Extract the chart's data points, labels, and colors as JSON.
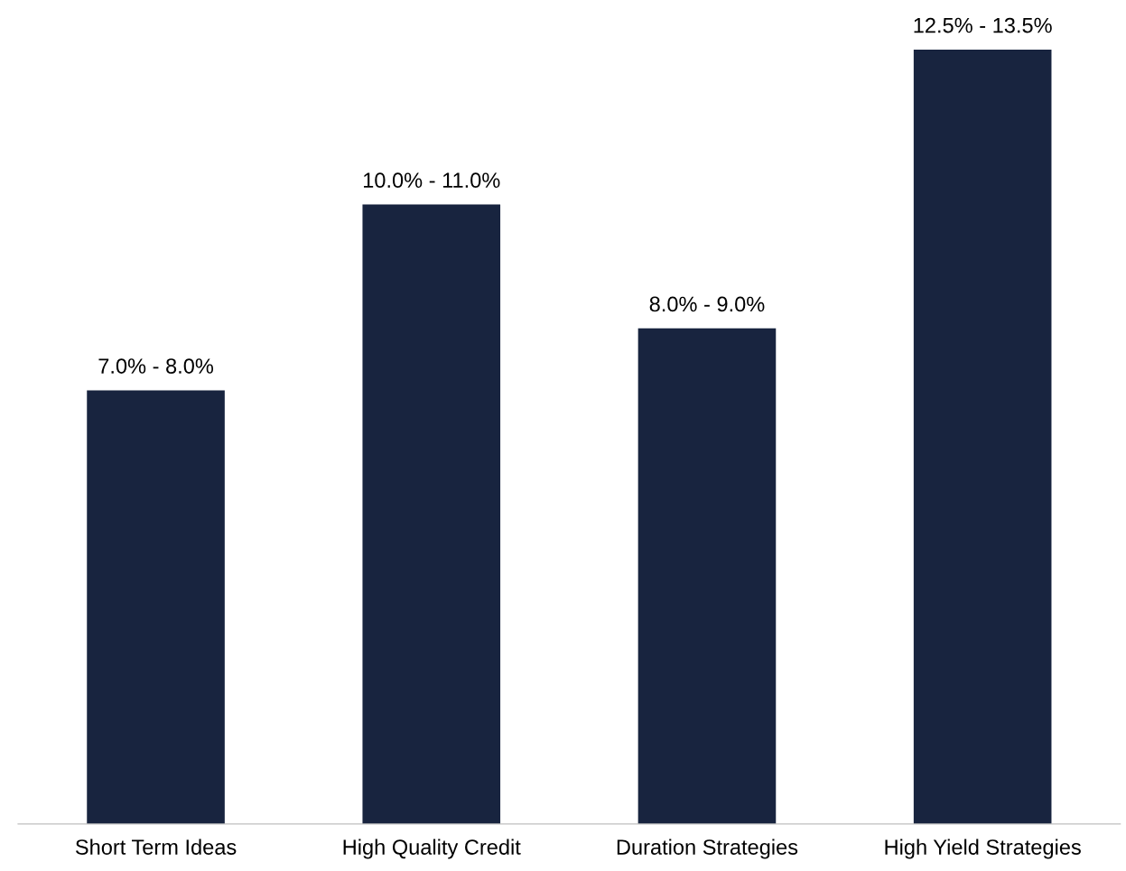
{
  "chart_data": {
    "type": "bar",
    "categories": [
      "Short Term Ideas",
      "High Quality Credit",
      "Duration Strategies",
      "High Yield Strategies"
    ],
    "values": [
      7.0,
      10.0,
      8.0,
      12.5
    ],
    "value_labels": [
      "7.0% - 8.0%",
      "10.0% - 11.0%",
      "8.0% - 9.0%",
      "12.5% - 13.5%"
    ],
    "color": "#18243f",
    "grid": false,
    "legend": false
  }
}
